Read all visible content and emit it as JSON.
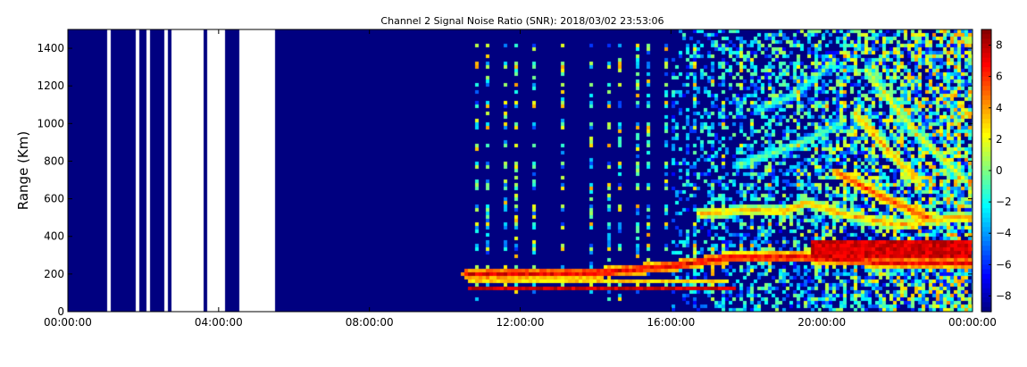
{
  "chart_data": {
    "type": "heatmap",
    "title": "Channel 2 Signal Noise Ratio (SNR): 2018/03/02 23:53:06",
    "xlabel": "",
    "ylabel": "Range (Km)",
    "x_ticks": [
      "00:00:00",
      "04:00:00",
      "08:00:00",
      "12:00:00",
      "16:00:00",
      "20:00:00",
      "00:00:00"
    ],
    "xlim_hours": [
      0,
      24
    ],
    "y_ticks": [
      0,
      200,
      400,
      600,
      800,
      1000,
      1200,
      1400
    ],
    "ylim": [
      0,
      1500
    ],
    "colorbar": {
      "range": [
        -9,
        9
      ],
      "ticks": [
        -8,
        -6,
        -4,
        -2,
        0,
        2,
        4,
        6,
        8
      ],
      "colormap": "jet"
    },
    "background_value": -9,
    "data_gaps_hours": [
      [
        1.05,
        1.15
      ],
      [
        1.82,
        1.9
      ],
      [
        2.05,
        2.15
      ],
      [
        2.55,
        2.65
      ],
      [
        2.72,
        3.62
      ],
      [
        3.72,
        4.15
      ],
      [
        4.55,
        5.5
      ]
    ],
    "periodic_echo_start_hours": 10.6,
    "diffuse_noise_start_hours": 16.0,
    "features": [
      {
        "name": "low-echo-band-1",
        "hours": [
          10.6,
          17.7
        ],
        "range_km": [
          110,
          125
        ],
        "snr_db": 8.5
      },
      {
        "name": "low-echo-band-2",
        "hours": [
          10.6,
          17.5
        ],
        "range_km": [
          160,
          175
        ],
        "snr_db": 4
      },
      {
        "name": "sloped-echo-trace",
        "points": [
          [
            10.6,
            200
          ],
          [
            14.0,
            205
          ],
          [
            16.0,
            240
          ],
          [
            17.5,
            285
          ],
          [
            19.5,
            290
          ],
          [
            21.5,
            260
          ],
          [
            24.0,
            260
          ]
        ],
        "snr_db": 8.5
      },
      {
        "name": "mid-echo-trace",
        "points": [
          [
            16.8,
            520
          ],
          [
            18.0,
            540
          ],
          [
            19.0,
            530
          ],
          [
            19.6,
            580
          ],
          [
            20.5,
            520
          ],
          [
            22.0,
            460
          ],
          [
            23.5,
            500
          ],
          [
            24.0,
            500
          ]
        ],
        "snr_db": 5
      },
      {
        "name": "strong-echo-region",
        "hours": [
          19.7,
          24.0
        ],
        "range_km": [
          280,
          380
        ],
        "snr_db": 8.5
      },
      {
        "name": "diagonal-echo-1",
        "points": [
          [
            20.4,
            740
          ],
          [
            21.5,
            620
          ],
          [
            22.8,
            500
          ]
        ],
        "snr_db": 7
      },
      {
        "name": "diagonal-echo-2",
        "points": [
          [
            20.9,
            1050
          ],
          [
            21.8,
            850
          ],
          [
            22.5,
            700
          ]
        ],
        "snr_db": 5
      },
      {
        "name": "diagonal-echo-3",
        "points": [
          [
            21.2,
            1280
          ],
          [
            22.5,
            950
          ],
          [
            23.8,
            700
          ]
        ],
        "snr_db": 3
      },
      {
        "name": "faint-echo-1",
        "points": [
          [
            17.8,
            780
          ],
          [
            19.5,
            900
          ],
          [
            20.5,
            1000
          ]
        ],
        "snr_db": 1
      },
      {
        "name": "faint-echo-2",
        "points": [
          [
            18.3,
            1070
          ],
          [
            19.3,
            1150
          ],
          [
            20.3,
            1330
          ]
        ],
        "snr_db": 0
      }
    ]
  }
}
